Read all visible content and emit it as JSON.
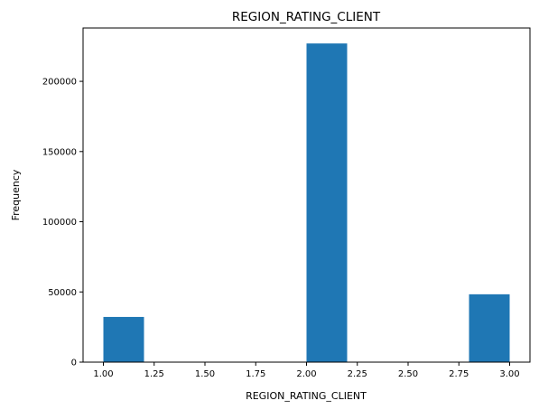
{
  "chart_data": {
    "type": "bar",
    "title": "REGION_RATING_CLIENT",
    "xlabel": "REGION_RATING_CLIENT",
    "ylabel": "Frequency",
    "xlim": [
      0.9,
      3.1
    ],
    "ylim": [
      0,
      238000
    ],
    "bin_edges": [
      1.0,
      1.2,
      1.4,
      1.6,
      1.8,
      2.0,
      2.2,
      2.4,
      2.6,
      2.8,
      3.0
    ],
    "values": [
      32197,
      0,
      0,
      0,
      0,
      226984,
      0,
      0,
      0,
      48330
    ],
    "x_ticks": [
      1.0,
      1.25,
      1.5,
      1.75,
      2.0,
      2.25,
      2.5,
      2.75,
      3.0
    ],
    "x_tick_labels": [
      "1.00",
      "1.25",
      "1.50",
      "1.75",
      "2.00",
      "2.25",
      "2.50",
      "2.75",
      "3.00"
    ],
    "y_ticks": [
      0,
      50000,
      100000,
      150000,
      200000
    ],
    "y_tick_labels": [
      "0",
      "50000",
      "100000",
      "150000",
      "200000"
    ],
    "bar_color": "#1f77b4",
    "grid": false
  }
}
